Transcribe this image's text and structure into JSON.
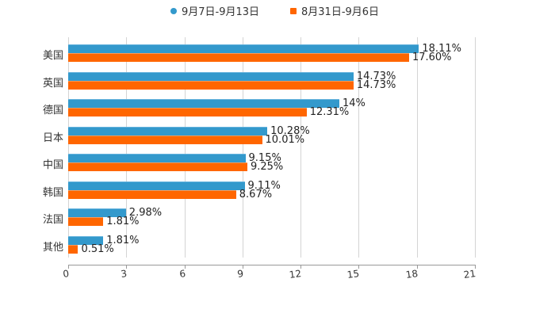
{
  "legend": [
    {
      "label": "9月7日-9月13日",
      "color": "#3399cc",
      "shape": "circle"
    },
    {
      "label": "8月31日-9月6日",
      "color": "#ff6600",
      "shape": "square"
    }
  ],
  "x_axis": {
    "ticks": [
      "0",
      "3",
      "6",
      "9",
      "12",
      "15",
      "18",
      "21"
    ]
  },
  "chart_data": {
    "type": "bar",
    "orientation": "horizontal",
    "title": "",
    "xlabel": "",
    "ylabel": "",
    "xlim": [
      0,
      21
    ],
    "grid": true,
    "legend_position": "top",
    "categories": [
      "美国",
      "英国",
      "德国",
      "日本",
      "中国",
      "韩国",
      "法国",
      "其他"
    ],
    "series": [
      {
        "name": "9月7日-9月13日",
        "color": "#3399cc",
        "values": [
          18.11,
          14.73,
          14,
          10.28,
          9.15,
          9.11,
          2.98,
          1.81
        ],
        "labels": [
          "18.11%",
          "14.73%",
          "14%",
          "10.28%",
          "9.15%",
          "9.11%",
          "2.98%",
          "1.81%"
        ]
      },
      {
        "name": "8月31日-9月6日",
        "color": "#ff6600",
        "values": [
          17.6,
          14.73,
          12.31,
          10.01,
          9.25,
          8.67,
          1.81,
          0.51
        ],
        "labels": [
          "17.60%",
          "14.73%",
          "12.31%",
          "10.01%",
          "9.25%",
          "8.67%",
          "1.81%",
          "0.51%"
        ]
      }
    ]
  }
}
